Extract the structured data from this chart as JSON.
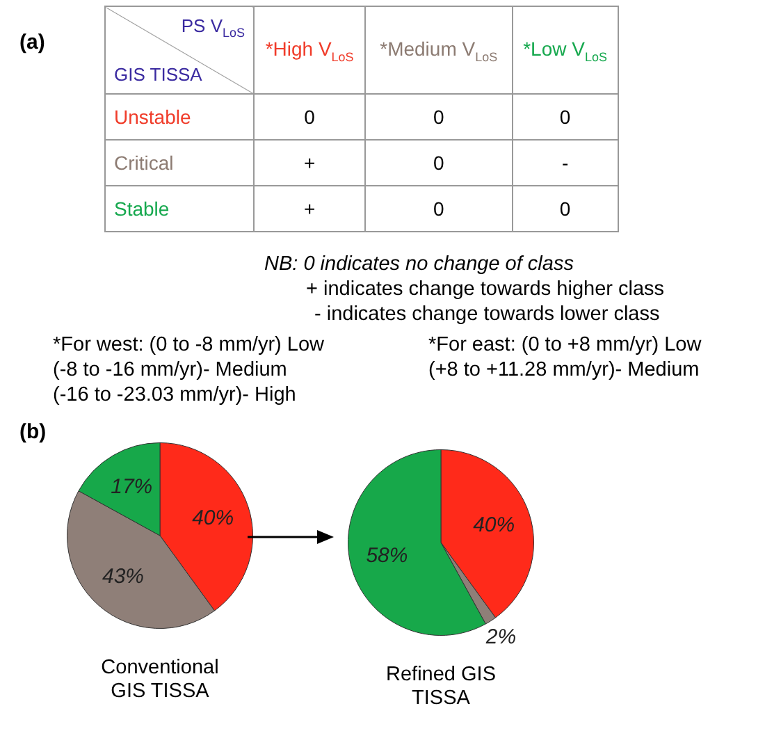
{
  "chart_data": [
    {
      "type": "other",
      "title": "(a)",
      "xlabel": "PS V$_{LoS}$",
      "ylabel": "GIS TISSA",
      "categories": [
        "*High V$_{LoS}$",
        "*Medium V$_{LoS}$",
        "*Low V$_{LoS}$"
      ],
      "y_categories": [
        "Unstable",
        "Critical",
        "Stable"
      ],
      "colors": [
        "#f03c2a",
        "#8c7b72",
        "#16a84e"
      ],
      "cell_labels": [
        [
          "0",
          "0",
          "0"
        ],
        [
          "+",
          "0",
          "-"
        ],
        [
          "+",
          "0",
          "0"
        ]
      ],
      "annotations": [
        "NB: 0 indicates no change of class",
        "+ indicates change towards higher class",
        "- indicates change towards lower class",
        "*For west: (0 to -8 mm/yr) Low",
        "(-8 to -16 mm/yr)- Medium",
        "(-16 to -23.03 mm/yr)- High",
        "*For east: (0 to +8 mm/yr) Low",
        "(+8 to +11.28 mm/yr)- Medium"
      ]
    },
    {
      "type": "pie",
      "title": "(b)",
      "xlabel": "Conventional GIS TISSA",
      "categories": [
        null,
        null,
        null
      ],
      "values": [
        40,
        43,
        17
      ],
      "value_labels": [
        "40%",
        "43%",
        "17%"
      ],
      "colors": [
        "#ff2a1a",
        "#8f7f78",
        "#17a84a"
      ],
      "legend": false
    },
    {
      "type": "pie",
      "xlabel": "Refined GIS TISSA",
      "categories": [
        null,
        null,
        null
      ],
      "values": [
        40,
        2,
        58
      ],
      "value_labels": [
        "40%",
        "2%",
        "58%"
      ],
      "colors": [
        "#ff2a1a",
        "#8f7f78",
        "#17a84a"
      ],
      "legend": false
    }
  ]
}
